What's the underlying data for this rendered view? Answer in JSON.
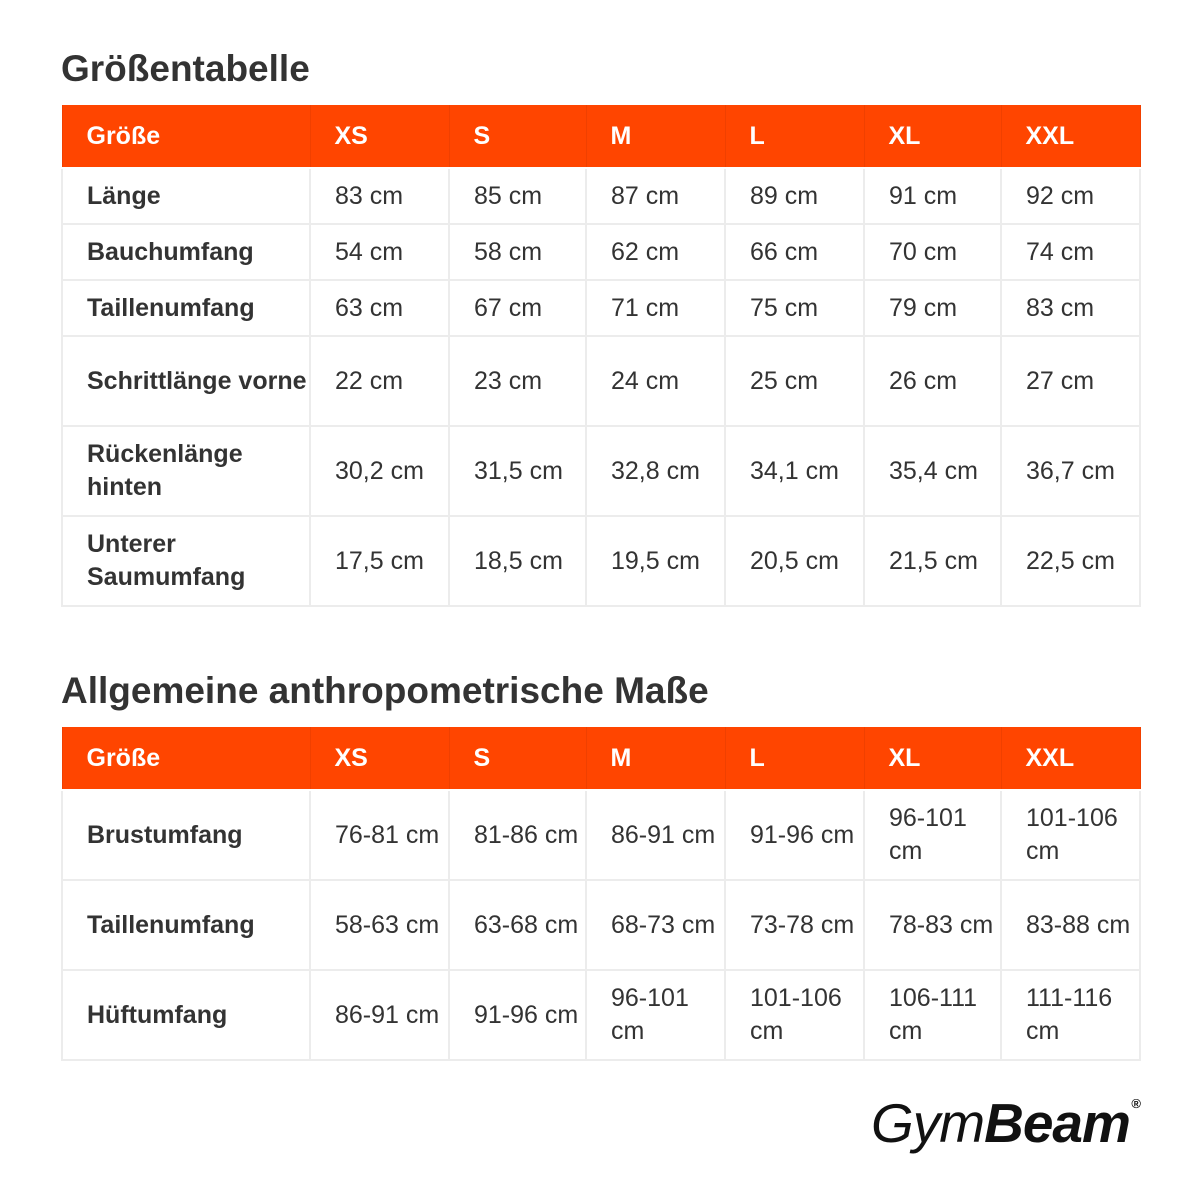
{
  "sections": [
    {
      "title": "Größentabelle",
      "header": [
        "Größe",
        "XS",
        "S",
        "M",
        "L",
        "XL",
        "XXL"
      ],
      "rows": [
        [
          "Länge",
          "83 cm",
          "85 cm",
          "87 cm",
          "89 cm",
          "91 cm",
          "92 cm"
        ],
        [
          "Bauchumfang",
          "54 cm",
          "58 cm",
          "62 cm",
          "66 cm",
          "70 cm",
          "74 cm"
        ],
        [
          "Taillenumfang",
          "63 cm",
          "67 cm",
          "71 cm",
          "75 cm",
          "79 cm",
          "83 cm"
        ],
        [
          "Schrittlänge vorne",
          "22 cm",
          "23 cm",
          "24 cm",
          "25 cm",
          "26 cm",
          "27 cm"
        ],
        [
          "Rückenlänge hinten",
          "30,2 cm",
          "31,5 cm",
          "32,8 cm",
          "34,1 cm",
          "35,4 cm",
          "36,7 cm"
        ],
        [
          "Unterer Saumumfang",
          "17,5 cm",
          "18,5 cm",
          "19,5 cm",
          "20,5 cm",
          "21,5 cm",
          "22,5 cm"
        ]
      ]
    },
    {
      "title": "Allgemeine anthropometrische Maße",
      "header": [
        "Größe",
        "XS",
        "S",
        "M",
        "L",
        "XL",
        "XXL"
      ],
      "rows": [
        [
          "Brustumfang",
          "76-81 cm",
          "81-86 cm",
          "86-91 cm",
          "91-96 cm",
          "96-101 cm",
          "101-106 cm"
        ],
        [
          "Taillenumfang",
          "58-63 cm",
          "63-68 cm",
          "68-73 cm",
          "73-78 cm",
          "78-83 cm",
          "83-88 cm"
        ],
        [
          "Hüftumfang",
          "86-91 cm",
          "91-96 cm",
          "96-101 cm",
          "101-106 cm",
          "106-111 cm",
          "111-116 cm"
        ]
      ]
    }
  ],
  "logo": {
    "part1": "Gym",
    "part2": "Beam",
    "mark": "®"
  },
  "colors": {
    "header_bg": "#ff4500",
    "header_text": "#ffffff",
    "text": "#333333",
    "grid": "#ececec"
  }
}
